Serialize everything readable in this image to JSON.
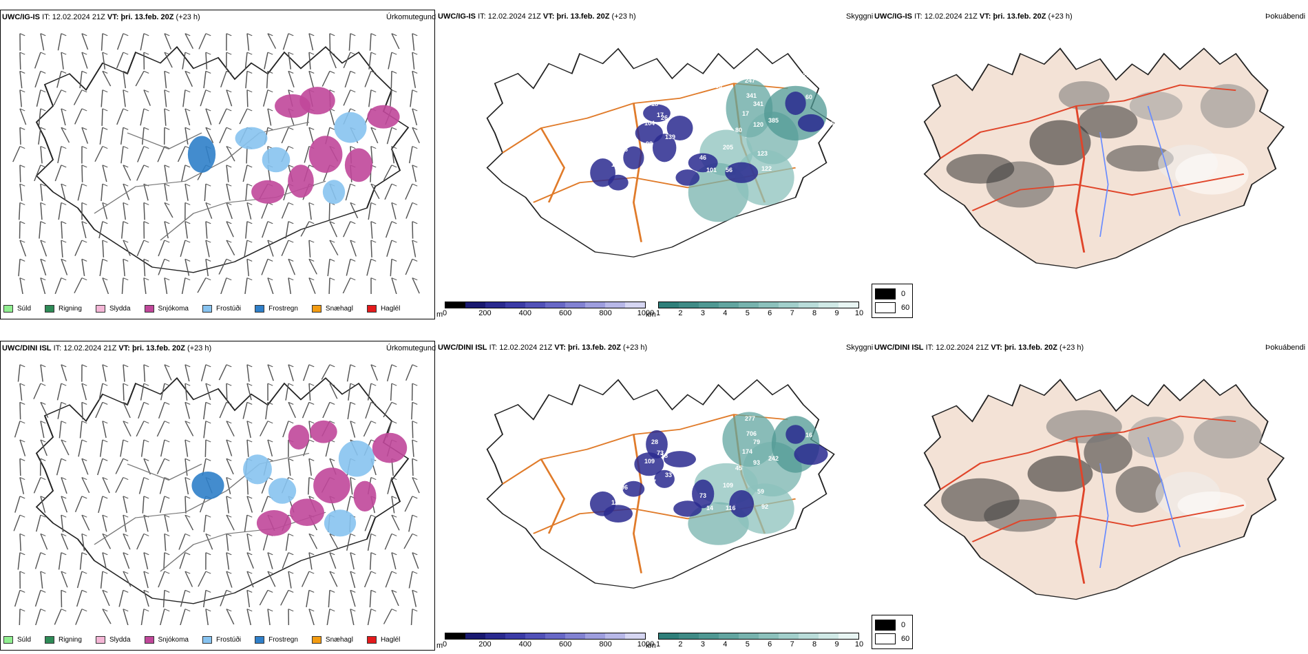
{
  "rows": [
    {
      "model": "UWC/IG-IS",
      "it_label": "IT:",
      "it_value": "12.02.2024 21Z",
      "vt_label": "VT:",
      "vt_value": "þri. 13.feb. 20Z",
      "lead": "(+23 h)",
      "precip_title": "Úrkomutegund",
      "visibility_title": "Skyggni",
      "fog_title": "Þokuábendi",
      "cloud_labels": [
        "236",
        "86",
        "152",
        "98",
        "94",
        "139",
        "104",
        "17",
        "18",
        "26",
        "29",
        "363",
        "247",
        "341",
        "341",
        "17",
        "120",
        "385",
        "80",
        "205",
        "46",
        "101",
        "56",
        "123",
        "122",
        "60",
        "90",
        "16",
        "27"
      ]
    },
    {
      "model": "UWC/DINI ISL",
      "it_label": "IT:",
      "it_value": "12.02.2024 21Z",
      "vt_label": "VT:",
      "vt_value": "þri. 13.feb. 20Z",
      "lead": "(+23 h)",
      "precip_title": "Úrkomutegund",
      "visibility_title": "Skyggni",
      "fog_title": "Þokuábendi",
      "cloud_labels": [
        "106",
        "96",
        "124",
        "177",
        "85",
        "33",
        "109",
        "73",
        "28",
        "18",
        "57",
        "257",
        "277",
        "706",
        "79",
        "174",
        "93",
        "242",
        "45",
        "109",
        "73",
        "14",
        "116",
        "59",
        "92",
        "16",
        "21"
      ]
    }
  ],
  "precip_legend": [
    {
      "label": "Súld",
      "color": "#90ee90"
    },
    {
      "label": "Rigning",
      "color": "#2e8b57"
    },
    {
      "label": "Slydda",
      "color": "#f4b6d6"
    },
    {
      "label": "Snjókoma",
      "color": "#c0479a"
    },
    {
      "label": "Frostúði",
      "color": "#87c3f0"
    },
    {
      "label": "Frostregn",
      "color": "#2f7fc9"
    },
    {
      "label": "Snæhagl",
      "color": "#f39c12"
    },
    {
      "label": "Haglél",
      "color": "#e41a1c"
    }
  ],
  "ceiling_scale": {
    "unit": "m",
    "ticks": [
      "0",
      "200",
      "400",
      "600",
      "800",
      "1000"
    ],
    "colors": [
      "#000000",
      "#191970",
      "#2a2a8f",
      "#3b3ba6",
      "#5151b8",
      "#6868c6",
      "#8282d2",
      "#9e9ede",
      "#b8b8e8",
      "#d6d6f2"
    ]
  },
  "visibility_scale": {
    "unit": "km",
    "ticks": [
      "1",
      "2",
      "3",
      "4",
      "5",
      "6",
      "7",
      "8",
      "9",
      "10"
    ],
    "colors": [
      "#2f7f7a",
      "#3f8b86",
      "#4f9893",
      "#62a5a0",
      "#77b3ae",
      "#8cc1bc",
      "#a2cfcb",
      "#b9dcd9",
      "#d0e9e6",
      "#e8f5f3"
    ]
  },
  "fog_scale": {
    "items": [
      {
        "label": "0",
        "color": "#000000"
      },
      {
        "label": "60",
        "color": "#ffffff"
      }
    ]
  }
}
